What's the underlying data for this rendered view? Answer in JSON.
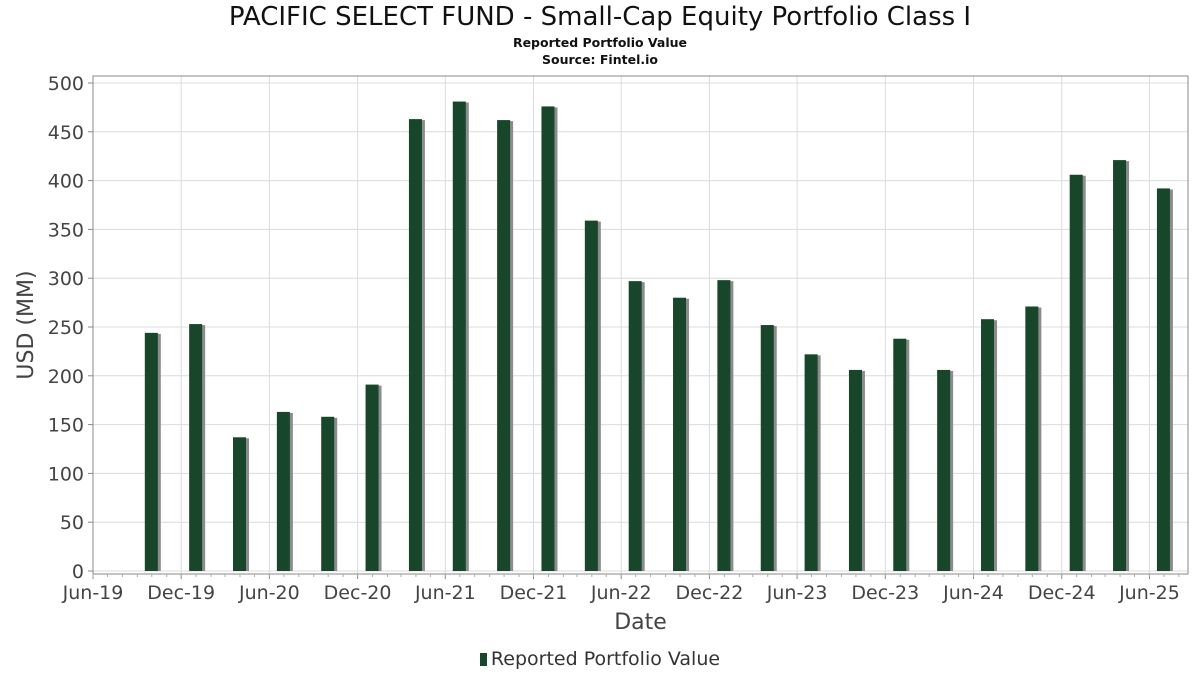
{
  "chart_data": {
    "type": "bar",
    "title": "PACIFIC SELECT FUND - Small-Cap Equity Portfolio Class I",
    "subtitle": "Reported Portfolio Value",
    "source": "Source: Fintel.io",
    "xlabel": "Date",
    "ylabel": "USD (MM)",
    "ylim": [
      0,
      500
    ],
    "yticks": [
      0,
      50,
      100,
      150,
      200,
      250,
      300,
      350,
      400,
      450,
      500
    ],
    "xlim": [
      "2019-06-01",
      "2025-08-20"
    ],
    "xticks": [
      {
        "label": "Jun-19",
        "date": "2019-06-01"
      },
      {
        "label": "Dec-19",
        "date": "2019-12-01"
      },
      {
        "label": "Jun-20",
        "date": "2020-06-01"
      },
      {
        "label": "Dec-20",
        "date": "2020-12-01"
      },
      {
        "label": "Jun-21",
        "date": "2021-06-01"
      },
      {
        "label": "Dec-21",
        "date": "2021-12-01"
      },
      {
        "label": "Jun-22",
        "date": "2022-06-01"
      },
      {
        "label": "Dec-22",
        "date": "2022-12-01"
      },
      {
        "label": "Jun-23",
        "date": "2023-06-01"
      },
      {
        "label": "Dec-23",
        "date": "2023-12-01"
      },
      {
        "label": "Jun-24",
        "date": "2024-06-01"
      },
      {
        "label": "Dec-24",
        "date": "2024-12-01"
      },
      {
        "label": "Jun-25",
        "date": "2025-06-01"
      }
    ],
    "grid": true,
    "legend_position": "bottom-center",
    "series": [
      {
        "name": "Reported Portfolio Value",
        "color": "#17462a",
        "points": [
          {
            "x": "2019-09-30",
            "y": 244
          },
          {
            "x": "2019-12-31",
            "y": 253
          },
          {
            "x": "2020-03-31",
            "y": 137
          },
          {
            "x": "2020-06-30",
            "y": 163
          },
          {
            "x": "2020-09-30",
            "y": 158
          },
          {
            "x": "2020-12-31",
            "y": 191
          },
          {
            "x": "2021-03-31",
            "y": 463
          },
          {
            "x": "2021-06-30",
            "y": 481
          },
          {
            "x": "2021-09-30",
            "y": 462
          },
          {
            "x": "2021-12-31",
            "y": 476
          },
          {
            "x": "2022-03-31",
            "y": 359
          },
          {
            "x": "2022-06-30",
            "y": 297
          },
          {
            "x": "2022-09-30",
            "y": 280
          },
          {
            "x": "2022-12-31",
            "y": 298
          },
          {
            "x": "2023-03-31",
            "y": 252
          },
          {
            "x": "2023-06-30",
            "y": 222
          },
          {
            "x": "2023-09-30",
            "y": 206
          },
          {
            "x": "2023-12-31",
            "y": 238
          },
          {
            "x": "2024-03-31",
            "y": 206
          },
          {
            "x": "2024-06-30",
            "y": 258
          },
          {
            "x": "2024-09-30",
            "y": 271
          },
          {
            "x": "2024-12-31",
            "y": 406
          },
          {
            "x": "2025-03-31",
            "y": 421
          },
          {
            "x": "2025-06-30",
            "y": 392
          }
        ]
      }
    ]
  }
}
